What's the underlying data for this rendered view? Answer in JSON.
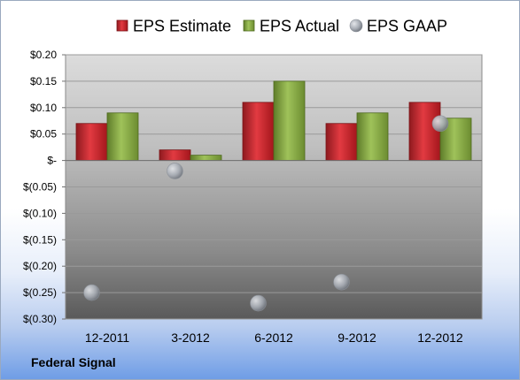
{
  "chart_data": {
    "type": "bar",
    "categories": [
      "12-2011",
      "3-2012",
      "6-2012",
      "9-2012",
      "12-2012"
    ],
    "series": [
      {
        "name": "EPS Estimate",
        "kind": "bar",
        "color": "#d42b34",
        "values": [
          0.07,
          0.02,
          0.11,
          0.07,
          0.11
        ]
      },
      {
        "name": "EPS Actual",
        "kind": "bar",
        "color": "#92b64c",
        "values": [
          0.09,
          0.01,
          0.15,
          0.09,
          0.08
        ]
      },
      {
        "name": "EPS GAAP",
        "kind": "scatter",
        "color": "#aab0b8",
        "values": [
          -0.25,
          -0.02,
          -0.27,
          -0.23,
          0.07
        ]
      }
    ],
    "y_ticks": [
      {
        "value": 0.2,
        "label": "$0.20"
      },
      {
        "value": 0.15,
        "label": "$0.15"
      },
      {
        "value": 0.1,
        "label": "$0.10"
      },
      {
        "value": 0.05,
        "label": "$0.05"
      },
      {
        "value": 0.0,
        "label": "$-"
      },
      {
        "value": -0.05,
        "label": "$(0.05)"
      },
      {
        "value": -0.1,
        "label": "$(0.10)"
      },
      {
        "value": -0.15,
        "label": "$(0.15)"
      },
      {
        "value": -0.2,
        "label": "$(0.20)"
      },
      {
        "value": -0.25,
        "label": "$(0.25)"
      },
      {
        "value": -0.3,
        "label": "$(0.30)"
      }
    ],
    "ylim": [
      -0.3,
      0.2
    ],
    "legend_position": "top",
    "grid": true
  },
  "company": "Federal Signal"
}
